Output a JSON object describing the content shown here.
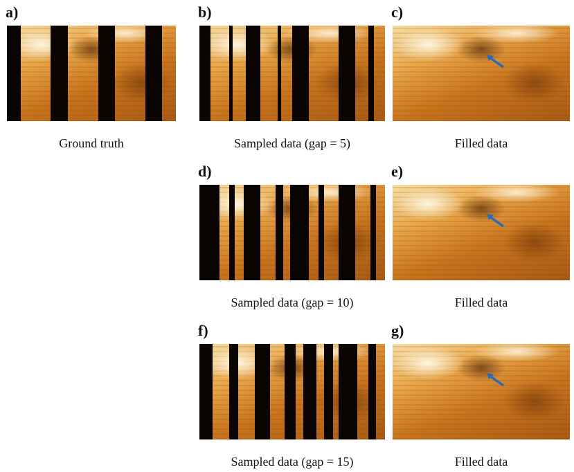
{
  "panels": [
    {
      "label": "a)",
      "caption": "Ground truth"
    },
    {
      "label": "b)",
      "caption": "Sampled data (gap = 5)"
    },
    {
      "label": "c)",
      "caption": "Filled data"
    },
    {
      "label": "d)",
      "caption": "Sampled data (gap = 10)"
    },
    {
      "label": "e)",
      "caption": "Filled data"
    },
    {
      "label": "f)",
      "caption": "Sampled data (gap = 15)"
    },
    {
      "label": "g)",
      "caption": "Filled data"
    }
  ]
}
